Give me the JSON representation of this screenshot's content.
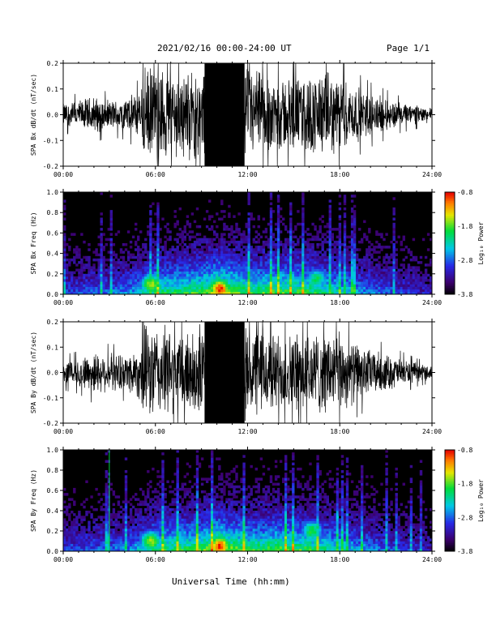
{
  "header": {
    "title": "2021/02/16  00:00-24:00 UT",
    "page": "Page 1/1"
  },
  "xlabel": "Universal Time (hh:mm)",
  "colorbar": {
    "label": "Log₁₀ Power",
    "ticks": [
      "-0.8",
      "-1.8",
      "-2.8",
      "-3.8"
    ],
    "tick_values": [
      -0.8,
      -1.8,
      -2.8,
      -3.8
    ],
    "range": [
      -3.8,
      -0.8
    ]
  },
  "chart_data": [
    {
      "type": "line",
      "id": "bx",
      "ylabel": "SPA Bx dB/dt (nT/sec)",
      "xlim": [
        0,
        24
      ],
      "ylim": [
        -0.2,
        0.2
      ],
      "x_ticks": [
        "00:00",
        "06:00",
        "12:00",
        "18:00",
        "24:00"
      ],
      "y_ticks": [
        "-0.2",
        "-0.1",
        "0.0",
        "0.1",
        "0.2"
      ],
      "y_tick_values": [
        -0.2,
        -0.1,
        0.0,
        0.1,
        0.2
      ],
      "envelope": {
        "hours": [
          0,
          1,
          2,
          3,
          4,
          5,
          5.2,
          5.5,
          6,
          6.5,
          7,
          8,
          9,
          9.5,
          10,
          11,
          12,
          13,
          14,
          15,
          16,
          17,
          18,
          19,
          20,
          21,
          22,
          23,
          24
        ],
        "amplitude": [
          0.05,
          0.06,
          0.08,
          0.06,
          0.07,
          0.1,
          0.2,
          0.2,
          0.2,
          0.2,
          0.19,
          0.18,
          0.2,
          0.2,
          0.2,
          0.2,
          0.2,
          0.18,
          0.16,
          0.16,
          0.17,
          0.18,
          0.16,
          0.12,
          0.09,
          0.07,
          0.05,
          0.04,
          0.03
        ]
      }
    },
    {
      "type": "heatmap",
      "id": "bx_spec",
      "ylabel": "SPA Bx Freq (Hz)",
      "xlim": [
        0,
        24
      ],
      "ylim": [
        0.0,
        1.0
      ],
      "x_ticks": [
        "00:00",
        "06:00",
        "12:00",
        "18:00",
        "24:00"
      ],
      "y_ticks": [
        "0.0",
        "0.2",
        "0.4",
        "0.6",
        "0.8",
        "1.0"
      ],
      "y_tick_values": [
        0.0,
        0.2,
        0.4,
        0.6,
        0.8,
        1.0
      ],
      "hotspots": [
        {
          "hour": 10.2,
          "freq": 0.05,
          "log_power": -0.9
        },
        {
          "hour": 5.7,
          "freq": 0.1,
          "log_power": -1.6
        },
        {
          "hour": 16.5,
          "freq": 0.15,
          "log_power": -2.0
        },
        {
          "hour": 13.5,
          "freq": 0.05,
          "log_power": -2.3
        }
      ]
    },
    {
      "type": "line",
      "id": "by",
      "ylabel": "SPA By dB/dt (nT/sec)",
      "xlim": [
        0,
        24
      ],
      "ylim": [
        -0.2,
        0.2
      ],
      "x_ticks": [
        "00:00",
        "06:00",
        "12:00",
        "18:00",
        "24:00"
      ],
      "y_ticks": [
        "-0.2",
        "-0.1",
        "0.0",
        "0.1",
        "0.2"
      ],
      "y_tick_values": [
        -0.2,
        -0.1,
        0.0,
        0.1,
        0.2
      ],
      "envelope": {
        "hours": [
          0,
          1,
          2,
          3,
          4,
          5,
          5.2,
          5.5,
          6,
          6.5,
          7,
          8,
          9,
          9.5,
          10,
          11,
          12,
          13,
          14,
          15,
          16,
          17,
          18,
          19,
          20,
          21,
          22,
          23,
          24
        ],
        "amplitude": [
          0.05,
          0.06,
          0.09,
          0.08,
          0.08,
          0.12,
          0.2,
          0.2,
          0.2,
          0.2,
          0.19,
          0.18,
          0.2,
          0.2,
          0.2,
          0.2,
          0.2,
          0.19,
          0.17,
          0.17,
          0.18,
          0.18,
          0.17,
          0.13,
          0.1,
          0.08,
          0.06,
          0.04,
          0.03
        ]
      }
    },
    {
      "type": "heatmap",
      "id": "by_spec",
      "ylabel": "SPA By Freq (Hz)",
      "xlim": [
        0,
        24
      ],
      "ylim": [
        0.0,
        1.0
      ],
      "x_ticks": [
        "00:00",
        "06:00",
        "12:00",
        "18:00",
        "24:00"
      ],
      "y_ticks": [
        "0.0",
        "0.2",
        "0.4",
        "0.6",
        "0.8",
        "1.0"
      ],
      "y_tick_values": [
        0.0,
        0.2,
        0.4,
        0.6,
        0.8,
        1.0
      ],
      "marker_hour": 3.0,
      "hotspots": [
        {
          "hour": 10.2,
          "freq": 0.05,
          "log_power": -0.9
        },
        {
          "hour": 5.7,
          "freq": 0.1,
          "log_power": -1.6
        },
        {
          "hour": 16.2,
          "freq": 0.2,
          "log_power": -1.9
        },
        {
          "hour": 13.5,
          "freq": 0.05,
          "log_power": -2.3
        }
      ]
    }
  ]
}
